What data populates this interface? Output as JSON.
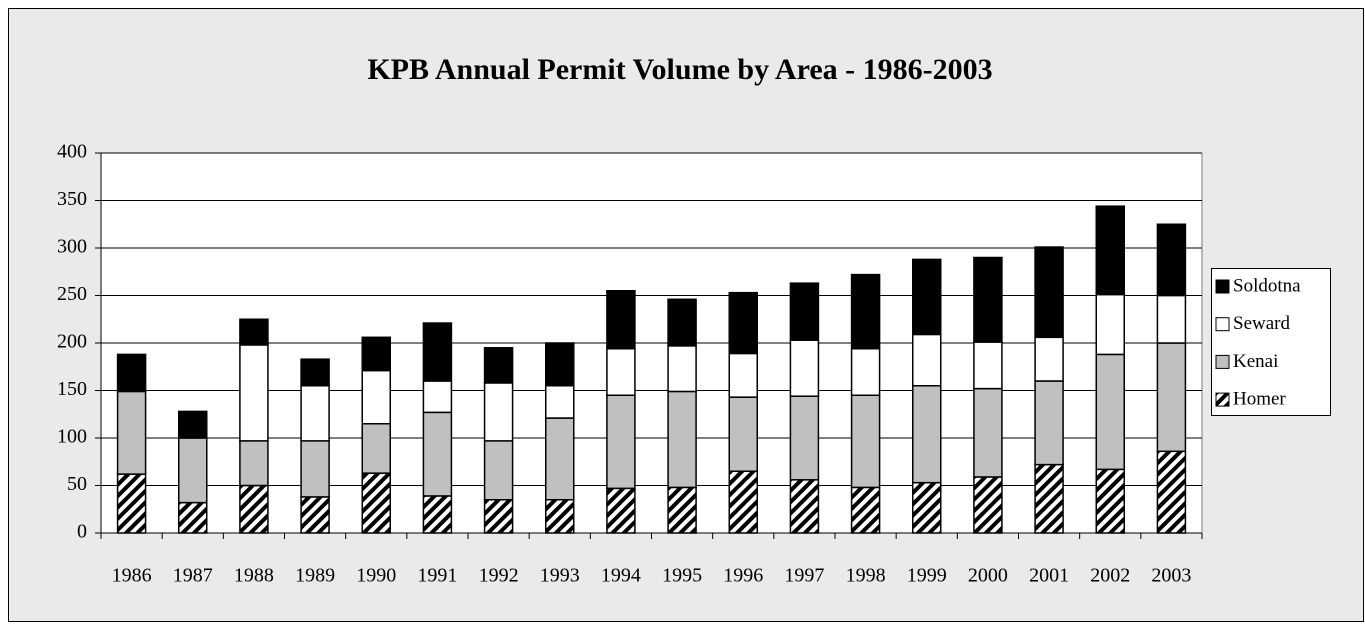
{
  "chart_data": {
    "type": "stacked_bar",
    "title": "KPB Annual Permit Volume by Area - 1986-2003",
    "categories": [
      "1986",
      "1987",
      "1988",
      "1989",
      "1990",
      "1991",
      "1992",
      "1993",
      "1994",
      "1995",
      "1996",
      "1997",
      "1998",
      "1999",
      "2000",
      "2001",
      "2002",
      "2003"
    ],
    "series": [
      {
        "name": "Homer",
        "color": "#000000",
        "pattern": "diagonal",
        "values": [
          62,
          32,
          50,
          38,
          63,
          39,
          35,
          35,
          47,
          48,
          65,
          56,
          48,
          53,
          59,
          72,
          67,
          86
        ]
      },
      {
        "name": "Kenai",
        "color": "#c0c0c0",
        "values": [
          87,
          68,
          47,
          59,
          52,
          88,
          62,
          86,
          98,
          101,
          78,
          88,
          97,
          102,
          93,
          88,
          121,
          114
        ]
      },
      {
        "name": "Seward",
        "color": "#ffffff",
        "values": [
          0,
          0,
          101,
          58,
          56,
          33,
          61,
          34,
          49,
          48,
          46,
          59,
          49,
          54,
          49,
          46,
          63,
          50
        ]
      },
      {
        "name": "Soldotna",
        "color": "#000000",
        "values": [
          39,
          28,
          27,
          28,
          35,
          61,
          37,
          45,
          61,
          49,
          64,
          60,
          78,
          79,
          89,
          95,
          93,
          75
        ]
      }
    ],
    "ylim": [
      0,
      400
    ],
    "yticks": [
      0,
      50,
      100,
      150,
      200,
      250,
      300,
      350,
      400
    ],
    "grid": true,
    "legend": "right"
  }
}
